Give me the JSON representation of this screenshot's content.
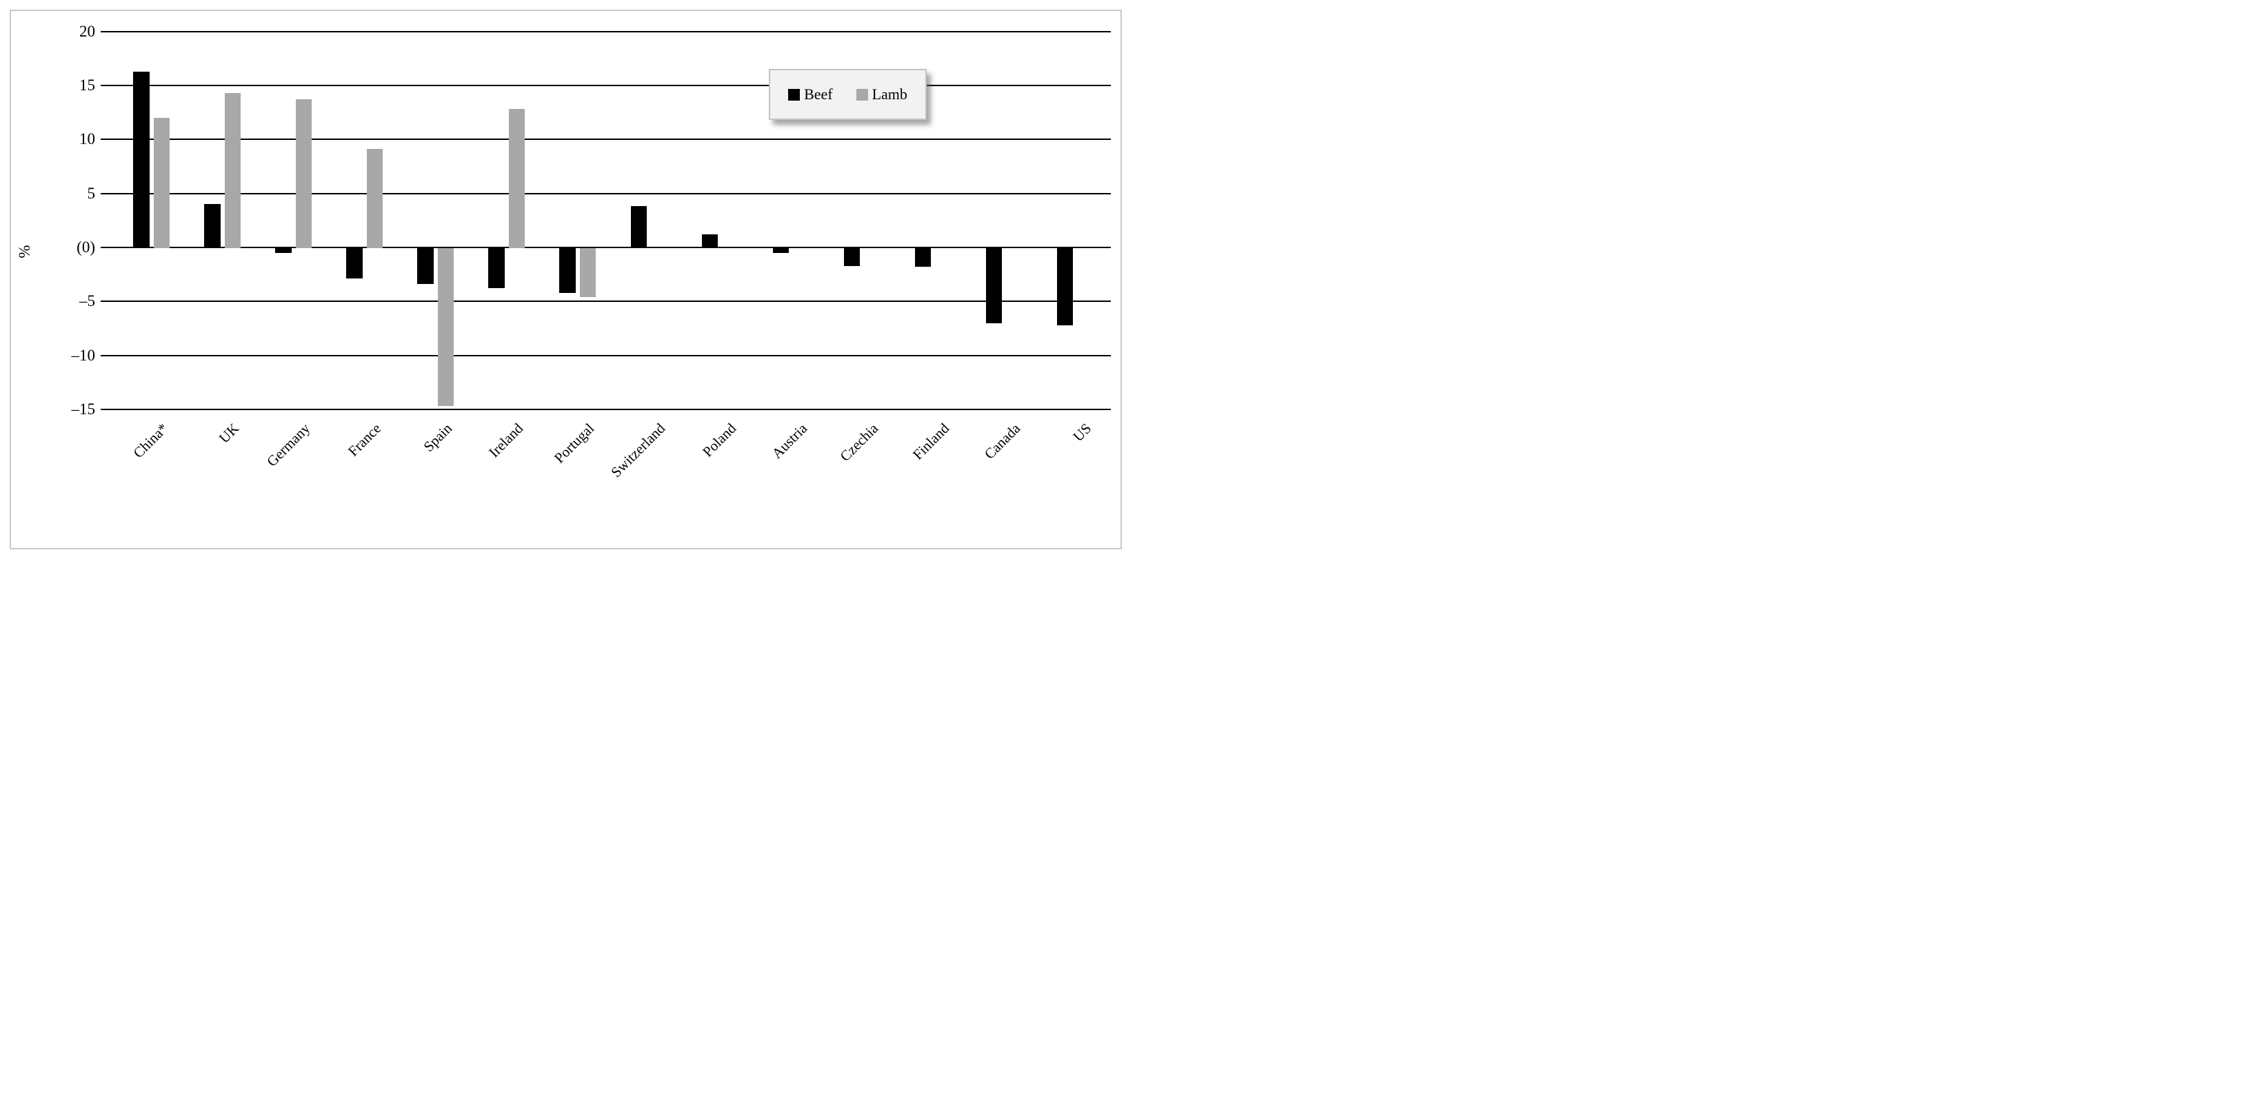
{
  "figure": {
    "background": "#ffffff",
    "border_color": "#c9c9c9"
  },
  "y_axis": {
    "title": "%",
    "tick_labels": [
      "20",
      "15",
      "10",
      "5",
      "(0)",
      "–5",
      "–10",
      "–15"
    ],
    "tick_values": [
      20,
      15,
      10,
      5,
      0,
      -5,
      -10,
      -15
    ]
  },
  "legend": {
    "items": [
      {
        "label": "Beef",
        "color": "#000000"
      },
      {
        "label": "Lamb",
        "color": "#a8a8a8"
      }
    ]
  },
  "chart_data": {
    "type": "bar",
    "title": "",
    "xlabel": "",
    "ylabel": "%",
    "ylim": [
      -15,
      20
    ],
    "grid": true,
    "legend_position": "top-right",
    "categories": [
      "China*",
      "UK",
      "Germany",
      "France",
      "Spain",
      "Ireland",
      "Portugal",
      "Switzerland",
      "Poland",
      "Austria",
      "Czechia",
      "Finland",
      "Canada",
      "US"
    ],
    "series": [
      {
        "name": "Beef",
        "color": "#000000",
        "values": [
          16.3,
          4.0,
          -0.5,
          -2.9,
          -3.4,
          -3.8,
          -4.2,
          3.8,
          1.2,
          -0.5,
          -1.7,
          -1.8,
          -7.0,
          -7.2
        ]
      },
      {
        "name": "Lamb",
        "color": "#a8a8a8",
        "values": [
          12.0,
          14.3,
          13.7,
          9.1,
          -14.7,
          12.8,
          -4.6,
          null,
          null,
          null,
          null,
          null,
          null,
          null
        ]
      }
    ]
  }
}
